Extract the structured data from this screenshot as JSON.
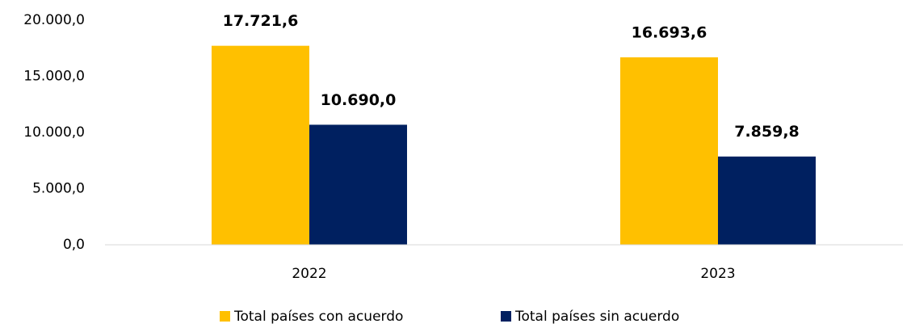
{
  "chart_data": {
    "type": "bar",
    "categories": [
      "2022",
      "2023"
    ],
    "series": [
      {
        "name": "Total países con acuerdo",
        "color": "#FFC000",
        "values": [
          17721.6,
          16693.6
        ],
        "value_labels": [
          "17.721,6",
          "16.693,6"
        ]
      },
      {
        "name": "Total países sin acuerdo",
        "color": "#002060",
        "values": [
          10690.0,
          7859.8
        ],
        "value_labels": [
          "10.690,0",
          "7.859,8"
        ]
      }
    ],
    "ylim": [
      0,
      20000
    ],
    "yticks": [
      {
        "value": 0,
        "label": "0,0"
      },
      {
        "value": 5000,
        "label": "5.000,0"
      },
      {
        "value": 10000,
        "label": "10.000,0"
      },
      {
        "value": 15000,
        "label": "15.000,0"
      },
      {
        "value": 20000,
        "label": "20.000,0"
      }
    ],
    "grid": false,
    "legend": "bottom"
  }
}
